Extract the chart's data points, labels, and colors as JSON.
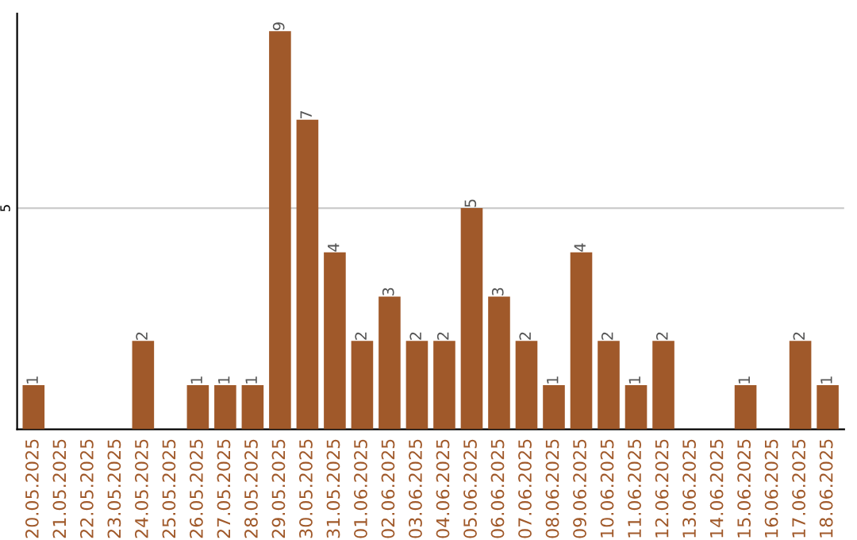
{
  "chart_data": {
    "type": "bar",
    "categories": [
      "20.05.2025",
      "21.05.2025",
      "22.05.2025",
      "23.05.2025",
      "24.05.2025",
      "25.05.2025",
      "26.05.2025",
      "27.05.2025",
      "28.05.2025",
      "29.05.2025",
      "30.05.2025",
      "31.05.2025",
      "01.06.2025",
      "02.06.2025",
      "03.06.2025",
      "04.06.2025",
      "05.06.2025",
      "06.06.2025",
      "07.06.2025",
      "08.06.2025",
      "09.06.2025",
      "10.06.2025",
      "11.06.2025",
      "12.06.2025",
      "13.06.2025",
      "14.06.2025",
      "15.06.2025",
      "16.06.2025",
      "17.06.2025",
      "18.06.2025"
    ],
    "values": [
      1,
      0,
      0,
      0,
      2,
      0,
      1,
      1,
      1,
      9,
      7,
      4,
      2,
      3,
      2,
      2,
      5,
      3,
      2,
      1,
      4,
      2,
      1,
      2,
      0,
      0,
      1,
      0,
      2,
      1
    ],
    "value_labels": [
      "1",
      null,
      null,
      null,
      "2",
      null,
      "1",
      "1",
      "1",
      "9",
      "7",
      "4",
      "2",
      "3",
      "2",
      "2",
      "5",
      "3",
      "2",
      "1",
      "4",
      "2",
      "1",
      "2",
      null,
      null,
      "1",
      null,
      "2",
      "1"
    ],
    "color": "#a0592a",
    "ylim": [
      0,
      9.4
    ],
    "yticks": [
      5
    ],
    "grid": "y"
  }
}
